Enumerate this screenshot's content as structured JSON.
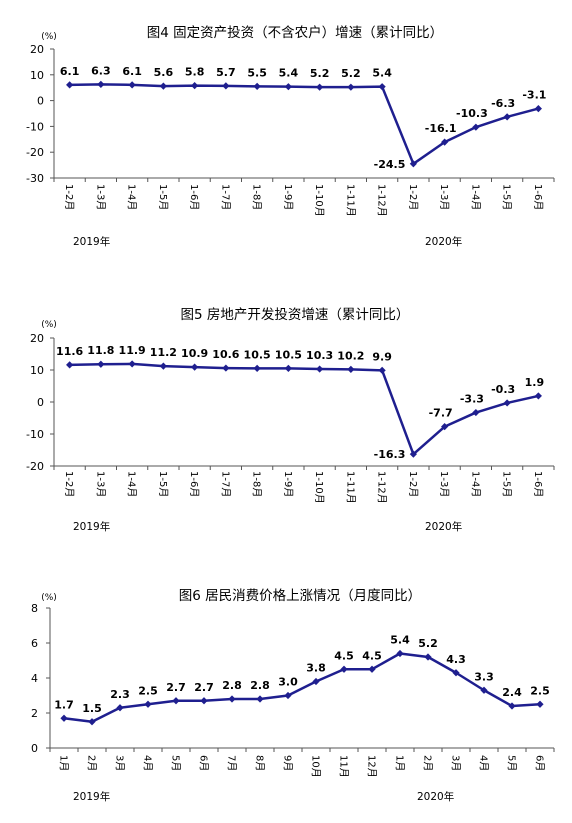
{
  "chart_data": [
    {
      "type": "line",
      "title": "图4   固定资产投资（不含农户）增速（累计同比）",
      "unit": "(%)",
      "ylim": [
        -30,
        20
      ],
      "yticks": [
        20,
        10,
        0,
        -10,
        -20,
        -30
      ],
      "categories": [
        "1-2月",
        "1-3月",
        "1-4月",
        "1-5月",
        "1-6月",
        "1-7月",
        "1-8月",
        "1-9月",
        "1-10月",
        "1-11月",
        "1-12月",
        "1-2月",
        "1-3月",
        "1-4月",
        "1-5月",
        "1-6月"
      ],
      "values": [
        6.1,
        6.3,
        6.1,
        5.6,
        5.8,
        5.7,
        5.5,
        5.4,
        5.2,
        5.2,
        5.4,
        -24.5,
        -16.1,
        -10.3,
        -6.3,
        -3.1
      ],
      "labels": [
        "6.1",
        "6.3",
        "6.1",
        "5.6",
        "5.8",
        "5.7",
        "5.5",
        "5.4",
        "5.2",
        "5.2",
        "5.4",
        "-24.5",
        "-16.1",
        "-10.3",
        "-6.3",
        "-3.1"
      ],
      "years": [
        "2019年",
        "2020年"
      ],
      "color": "#1f1f8f"
    },
    {
      "type": "line",
      "title": "图5   房地产开发投资增速（累计同比）",
      "unit": "(%)",
      "ylim": [
        -20,
        20
      ],
      "yticks": [
        20,
        10,
        0,
        -10,
        -20
      ],
      "categories": [
        "1-2月",
        "1-3月",
        "1-4月",
        "1-5月",
        "1-6月",
        "1-7月",
        "1-8月",
        "1-9月",
        "1-10月",
        "1-11月",
        "1-12月",
        "1-2月",
        "1-3月",
        "1-4月",
        "1-5月",
        "1-6月"
      ],
      "values": [
        11.6,
        11.8,
        11.9,
        11.2,
        10.9,
        10.6,
        10.5,
        10.5,
        10.3,
        10.2,
        9.9,
        -16.3,
        -7.7,
        -3.3,
        -0.3,
        1.9
      ],
      "labels": [
        "11.6",
        "11.8",
        "11.9",
        "11.2",
        "10.9",
        "10.6",
        "10.5",
        "10.5",
        "10.3",
        "10.2",
        "9.9",
        "-16.3",
        "-7.7",
        "-3.3",
        "-0.3",
        "1.9"
      ],
      "years": [
        "2019年",
        "2020年"
      ],
      "color": "#1f1f8f"
    },
    {
      "type": "line",
      "title": "图6   居民消费价格上涨情况（月度同比）",
      "unit": "(%)",
      "ylim": [
        0,
        8
      ],
      "yticks": [
        8,
        6,
        4,
        2,
        0
      ],
      "categories": [
        "1月",
        "2月",
        "3月",
        "4月",
        "5月",
        "6月",
        "7月",
        "8月",
        "9月",
        "10月",
        "11月",
        "12月",
        "1月",
        "2月",
        "3月",
        "4月",
        "5月",
        "6月"
      ],
      "values": [
        1.7,
        1.5,
        2.3,
        2.5,
        2.7,
        2.7,
        2.8,
        2.8,
        3.0,
        3.8,
        4.5,
        4.5,
        5.4,
        5.2,
        4.3,
        3.3,
        2.4,
        2.5
      ],
      "labels": [
        "1.7",
        "1.5",
        "2.3",
        "2.5",
        "2.7",
        "2.7",
        "2.8",
        "2.8",
        "3.0",
        "3.8",
        "4.5",
        "4.5",
        "5.4",
        "5.2",
        "4.3",
        "3.3",
        "2.4",
        "2.5"
      ],
      "years": [
        "2019年",
        "2020年"
      ],
      "color": "#1f1f8f"
    }
  ]
}
